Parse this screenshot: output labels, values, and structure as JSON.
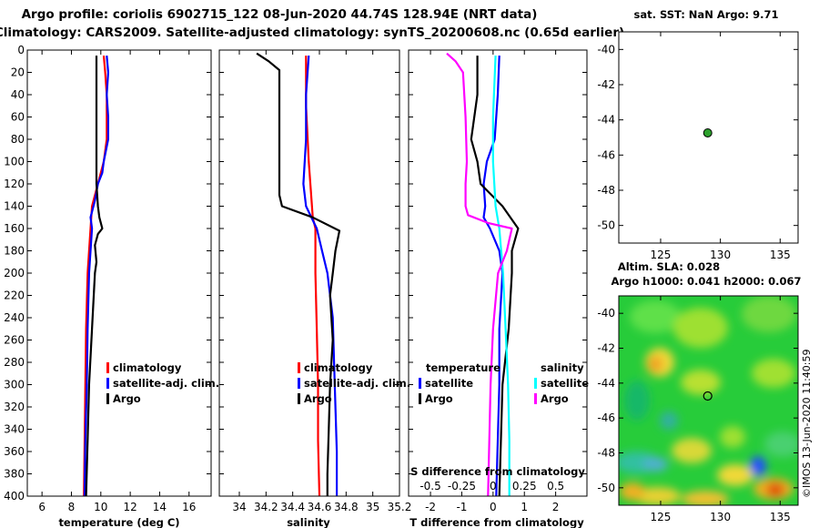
{
  "header": {
    "title_line1": "Argo profile: coriolis 6902715_122 08-Jun-2020 44.74S 128.94E (NRT data)",
    "title_line2": "Climatology: CARS2009. Satellite-adjusted climatology: synTS_20200608.nc (0.65d earlier)"
  },
  "colors": {
    "climatology": "#ff0000",
    "satellite": "#0000ff",
    "argo": "#000000",
    "sat_salinity": "#00ffff",
    "clim_salinity": "#ff00ff",
    "float_marker": "#2ca02c"
  },
  "chart_data": [
    {
      "type": "line",
      "panel": "temperature",
      "xlabel": "temperature (deg C)",
      "ylabel": "",
      "xlim": [
        5,
        17.5
      ],
      "ylim": [
        400,
        0
      ],
      "xticks": [
        6,
        8,
        10,
        12,
        14,
        16
      ],
      "yticks": [
        0,
        20,
        40,
        60,
        80,
        100,
        120,
        140,
        160,
        180,
        200,
        220,
        240,
        260,
        280,
        300,
        320,
        340,
        360,
        380,
        400
      ],
      "legend": [
        "climatology",
        "satellite-adj. clim.",
        "Argo"
      ],
      "series": [
        {
          "name": "climatology",
          "color": "#ff0000",
          "depth": [
            5,
            20,
            40,
            60,
            80,
            100,
            120,
            140,
            160,
            180,
            200,
            250,
            300,
            350,
            400
          ],
          "values": [
            10.2,
            10.3,
            10.4,
            10.4,
            10.4,
            10.2,
            9.8,
            9.4,
            9.3,
            9.2,
            9.1,
            9.0,
            8.95,
            8.9,
            8.85
          ]
        },
        {
          "name": "satellite-adj. clim.",
          "color": "#0000ff",
          "depth": [
            5,
            20,
            40,
            60,
            80,
            100,
            110,
            120,
            135,
            150,
            160,
            180,
            200,
            250,
            300,
            350,
            400
          ],
          "values": [
            10.4,
            10.5,
            10.4,
            10.5,
            10.5,
            10.2,
            10.1,
            9.8,
            9.6,
            9.3,
            9.4,
            9.3,
            9.2,
            9.1,
            9.05,
            8.95,
            8.9
          ]
        },
        {
          "name": "Argo",
          "color": "#000000",
          "depth": [
            5,
            20,
            40,
            60,
            80,
            100,
            120,
            140,
            150,
            160,
            165,
            175,
            190,
            200,
            250,
            300,
            350,
            400
          ],
          "values": [
            9.7,
            9.7,
            9.7,
            9.7,
            9.7,
            9.7,
            9.7,
            9.8,
            9.9,
            10.1,
            9.8,
            9.6,
            9.7,
            9.6,
            9.4,
            9.2,
            9.1,
            9.0
          ]
        }
      ]
    },
    {
      "type": "line",
      "panel": "salinity",
      "xlabel": "salinity",
      "xlim": [
        33.85,
        35.2
      ],
      "ylim": [
        400,
        0
      ],
      "xticks": [
        34,
        34.2,
        34.4,
        34.6,
        34.8,
        35,
        35.2
      ],
      "legend": [
        "climatology",
        "satellite-adj. clim.",
        "Argo"
      ],
      "series": [
        {
          "name": "climatology",
          "color": "#ff0000",
          "depth": [
            5,
            50,
            100,
            150,
            160,
            200,
            250,
            300,
            350,
            400
          ],
          "values": [
            34.5,
            34.5,
            34.52,
            34.55,
            34.57,
            34.57,
            34.58,
            34.59,
            34.59,
            34.6
          ]
        },
        {
          "name": "satellite-adj. clim.",
          "color": "#0000ff",
          "depth": [
            5,
            40,
            80,
            120,
            140,
            160,
            180,
            200,
            240,
            280,
            320,
            360,
            400
          ],
          "values": [
            34.52,
            34.5,
            34.5,
            34.48,
            34.5,
            34.58,
            34.62,
            34.66,
            34.7,
            34.71,
            34.72,
            34.73,
            34.73
          ]
        },
        {
          "name": "Argo",
          "color": "#000000",
          "depth": [
            3,
            10,
            18,
            60,
            100,
            130,
            140,
            150,
            162,
            180,
            200,
            220,
            260,
            300,
            340,
            380,
            400
          ],
          "values": [
            34.13,
            34.22,
            34.3,
            34.3,
            34.3,
            34.3,
            34.32,
            34.55,
            34.75,
            34.72,
            34.7,
            34.68,
            34.7,
            34.68,
            34.67,
            34.66,
            34.66
          ]
        }
      ]
    },
    {
      "type": "line",
      "panel": "differences",
      "xlabel": "T difference from climatology",
      "xlabel_top": "S difference from climatology",
      "xlim": [
        -2.7,
        3
      ],
      "ylim": [
        400,
        0
      ],
      "xticks": [
        -2,
        -1,
        0,
        1,
        2
      ],
      "xticks_s": [
        -0.5,
        -0.25,
        0,
        0.25,
        0.5
      ],
      "legend_titles": [
        "temperature",
        "salinity"
      ],
      "legend": [
        "satellite",
        "Argo",
        "satellite",
        "Argo"
      ],
      "series": [
        {
          "name": "T satellite",
          "color": "#0000ff",
          "depth": [
            5,
            40,
            80,
            100,
            120,
            140,
            150,
            160,
            180,
            200,
            250,
            300,
            400
          ],
          "values": [
            0.2,
            0.15,
            0.05,
            -0.2,
            -0.3,
            -0.25,
            -0.3,
            -0.1,
            0.2,
            0.3,
            0.2,
            0.2,
            0.1
          ]
        },
        {
          "name": "T Argo",
          "color": "#000000",
          "depth": [
            5,
            40,
            80,
            100,
            120,
            140,
            160,
            180,
            200,
            250,
            300,
            400
          ],
          "values": [
            -0.5,
            -0.5,
            -0.7,
            -0.5,
            -0.4,
            0.3,
            0.8,
            0.6,
            0.6,
            0.5,
            0.3,
            0.2
          ]
        },
        {
          "name": "S satellite",
          "color": "#00ffff",
          "depth": [
            5,
            60,
            100,
            140,
            160,
            200,
            250,
            300,
            350,
            400
          ],
          "values": [
            0.02,
            0.0,
            0.0,
            0.02,
            0.05,
            0.08,
            0.1,
            0.12,
            0.13,
            0.13
          ]
        },
        {
          "name": "S Argo",
          "color": "#ff00ff",
          "depth": [
            3,
            10,
            20,
            60,
            100,
            120,
            140,
            148,
            155,
            160,
            170,
            180,
            200,
            250,
            300,
            350,
            400
          ],
          "values": [
            -0.37,
            -0.3,
            -0.24,
            -0.22,
            -0.21,
            -0.22,
            -0.22,
            -0.2,
            -0.04,
            0.15,
            0.13,
            0.11,
            0.04,
            0.0,
            -0.02,
            -0.03,
            -0.04
          ]
        }
      ]
    },
    {
      "type": "scatter",
      "panel": "sst-map",
      "title": "sat. SST: NaN Argo: 9.71",
      "xlim": [
        121.5,
        136.5
      ],
      "ylim": [
        -51,
        -39
      ],
      "xticks": [
        125,
        130,
        135
      ],
      "yticks": [
        -40,
        -42,
        -44,
        -46,
        -48,
        -50
      ],
      "points": [
        {
          "x": 128.94,
          "y": -44.74
        }
      ]
    },
    {
      "type": "heatmap",
      "panel": "altimetry-map",
      "title1": "Altim. SLA: 0.028",
      "title2": "Argo h1000: 0.041 h2000: 0.067",
      "xlim": [
        121.5,
        136.5
      ],
      "ylim": [
        -51,
        -39
      ],
      "xticks": [
        125,
        130,
        135
      ],
      "yticks": [
        -40,
        -42,
        -44,
        -46,
        -48,
        -50
      ],
      "points": [
        {
          "x": 128.94,
          "y": -44.74
        }
      ]
    }
  ],
  "footer": {
    "credit": "©IMOS 13-Jun-2020 11:40:59"
  }
}
